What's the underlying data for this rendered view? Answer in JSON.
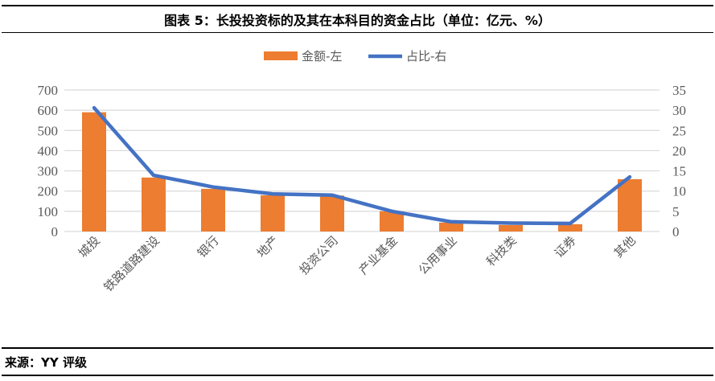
{
  "title": "图表 5：长投投资标的及其在本科目的资金占比（单位：亿元、%）",
  "source": "来源：YY 评级",
  "chart_data": {
    "type": "bar+line",
    "categories": [
      "城投",
      "铁路道路建设",
      "银行",
      "地产",
      "投资公司",
      "产业基金",
      "公用事业",
      "科技类",
      "证券",
      "其他"
    ],
    "series": [
      {
        "name": "金额-左",
        "type": "bar",
        "axis": "left",
        "color": "#ED7D31",
        "values": [
          590,
          267,
          211,
          179,
          178,
          100,
          44,
          32,
          36,
          259
        ]
      },
      {
        "name": "占比-右",
        "type": "line",
        "axis": "right",
        "color": "#4472C4",
        "values": [
          30.6,
          13.9,
          11.0,
          9.3,
          9.0,
          5.0,
          2.4,
          2.1,
          2.0,
          13.5
        ]
      }
    ],
    "y_left": {
      "range": [
        0,
        700
      ],
      "ticks": [
        0,
        100,
        200,
        300,
        400,
        500,
        600,
        700
      ]
    },
    "y_right": {
      "range": [
        0,
        35
      ],
      "ticks": [
        0,
        5,
        10,
        15,
        20,
        25,
        30,
        35
      ]
    },
    "grid": true,
    "legend": "top"
  }
}
